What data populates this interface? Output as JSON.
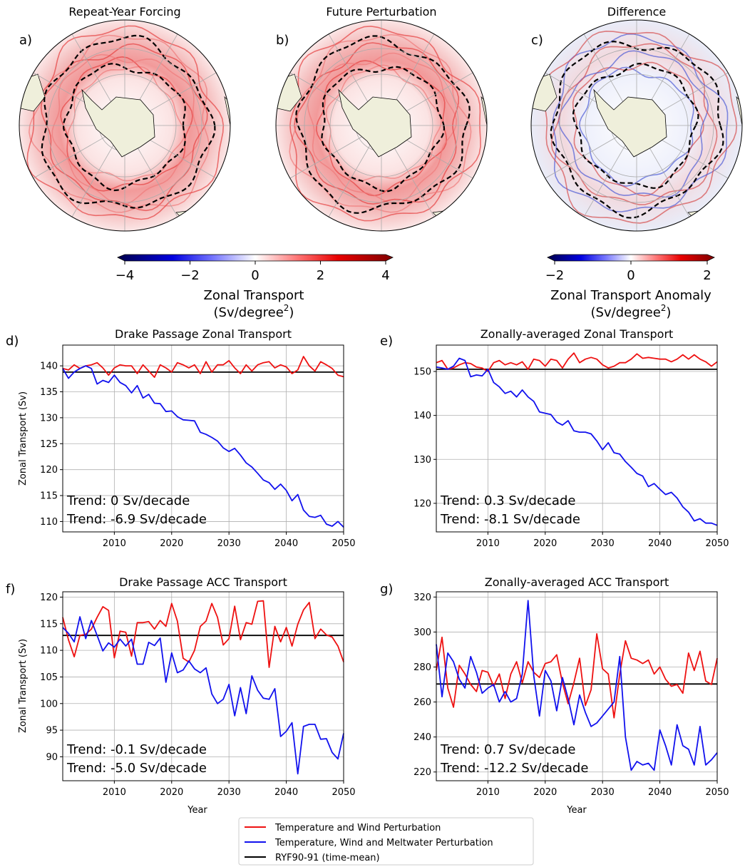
{
  "maps": [
    {
      "letter": "a)",
      "title": "Repeat-Year Forcing"
    },
    {
      "letter": "b)",
      "title": "Future Perturbation"
    },
    {
      "letter": "c)",
      "title": "Difference"
    }
  ],
  "colorbars": [
    {
      "ticks": [
        "−4",
        "−2",
        "0",
        "2",
        "4"
      ],
      "label1": "Zonal Transport",
      "label2a": "(Sv/degree",
      "label2sup": "2",
      "label2b": ")"
    },
    {
      "ticks": [
        "−2",
        "0",
        "2"
      ],
      "label1": "Zonal Transport Anomaly",
      "label2a": "(Sv/degree",
      "label2sup": "2",
      "label2b": ")"
    }
  ],
  "colors": {
    "red": "#ee1111",
    "blue": "#1111ee",
    "black": "#000000"
  },
  "legend": {
    "red": "Temperature and Wind Perturbation",
    "blue": "Temperature, Wind and Meltwater Perturbation",
    "black": "RYF90-91 (time-mean)"
  },
  "chart_data": [
    {
      "type": "line",
      "letter": "d)",
      "title": "Drake Passage Zonal Transport",
      "ylabel": "Zonal Transport (Sv)",
      "xlabel": "",
      "xlim": [
        2001,
        2050
      ],
      "ylim": [
        108,
        144
      ],
      "xticks": [
        2010,
        2020,
        2030,
        2040,
        2050
      ],
      "yticks": [
        110,
        115,
        120,
        125,
        130,
        135,
        140
      ],
      "x": [
        2001,
        2002,
        2003,
        2004,
        2005,
        2006,
        2007,
        2008,
        2009,
        2010,
        2011,
        2012,
        2013,
        2014,
        2015,
        2016,
        2017,
        2018,
        2019,
        2020,
        2021,
        2022,
        2023,
        2024,
        2025,
        2026,
        2027,
        2028,
        2029,
        2030,
        2031,
        2032,
        2033,
        2034,
        2035,
        2036,
        2037,
        2038,
        2039,
        2040,
        2041,
        2042,
        2043,
        2044,
        2045,
        2046,
        2047,
        2048,
        2049,
        2050
      ],
      "series": [
        {
          "name": "Temperature and Wind Perturbation",
          "color": "red",
          "values": [
            139.5,
            139.2,
            140.2,
            139.5,
            140,
            140.2,
            140.6,
            139.6,
            138.2,
            139.6,
            140.2,
            140,
            140,
            138.5,
            140.2,
            139,
            137.8,
            140.2,
            139.6,
            138.8,
            140.6,
            140.2,
            139.6,
            140.2,
            138.5,
            140.8,
            138.8,
            140.2,
            140.2,
            141,
            139.6,
            138.5,
            140.2,
            139,
            140.2,
            140.6,
            140.8,
            139.6,
            140.2,
            139.8,
            138.5,
            139.2,
            141.8,
            140,
            139,
            140.8,
            140.2,
            139.5,
            138.2,
            137.9
          ]
        },
        {
          "name": "Temperature, Wind and Meltwater Perturbation",
          "color": "blue",
          "values": [
            139.5,
            137.6,
            138.8,
            139.5,
            140,
            139.5,
            136.5,
            137.2,
            136.8,
            138.2,
            136.8,
            136.2,
            134.8,
            136.2,
            133.8,
            134.5,
            132.8,
            132.7,
            131.2,
            131.3,
            130.2,
            129.6,
            129.5,
            129.4,
            127.2,
            126.8,
            126.2,
            125.5,
            124.2,
            123.5,
            124.1,
            122.8,
            121.3,
            120.5,
            119.3,
            118,
            117.5,
            116.2,
            117.2,
            116,
            114,
            115.2,
            112.2,
            111,
            110.8,
            111.2,
            109.5,
            109.1,
            110,
            108.9
          ]
        }
      ],
      "hline": 138.8,
      "trends": [
        {
          "text": "Trend: 0 Sv/decade",
          "color": "red"
        },
        {
          "text": "Trend: -6.9 Sv/decade",
          "color": "blue"
        }
      ]
    },
    {
      "type": "line",
      "letter": "e)",
      "title": "Zonally-averaged Zonal Transport",
      "ylabel": "",
      "xlabel": "",
      "xlim": [
        2001,
        2050
      ],
      "ylim": [
        113.5,
        156
      ],
      "xticks": [
        2010,
        2020,
        2030,
        2040,
        2050
      ],
      "yticks": [
        120,
        130,
        140,
        150
      ],
      "x": [
        2001,
        2002,
        2003,
        2004,
        2005,
        2006,
        2007,
        2008,
        2009,
        2010,
        2011,
        2012,
        2013,
        2014,
        2015,
        2016,
        2017,
        2018,
        2019,
        2020,
        2021,
        2022,
        2023,
        2024,
        2025,
        2026,
        2027,
        2028,
        2029,
        2030,
        2031,
        2032,
        2033,
        2034,
        2035,
        2036,
        2037,
        2038,
        2039,
        2040,
        2041,
        2042,
        2043,
        2044,
        2045,
        2046,
        2047,
        2048,
        2049,
        2050
      ],
      "series": [
        {
          "name": "Temperature and Wind Perturbation",
          "color": "red",
          "values": [
            152,
            152.5,
            150.5,
            150.8,
            151.5,
            152,
            151.8,
            151,
            150.8,
            150,
            152,
            152.5,
            151.5,
            152,
            151.5,
            152.2,
            150.5,
            152.8,
            152.5,
            151.2,
            152.8,
            152.5,
            150.8,
            152.8,
            154.2,
            152,
            152.8,
            153.2,
            152.8,
            151.5,
            150.8,
            151.2,
            152,
            152,
            152.8,
            154,
            153,
            153.2,
            153,
            152.8,
            152.8,
            152.2,
            152.8,
            153.8,
            152.8,
            153.8,
            152.8,
            152.2,
            151.2,
            152.2
          ]
        },
        {
          "name": "Temperature, Wind and Meltwater Perturbation",
          "color": "blue",
          "values": [
            151,
            150.8,
            150.5,
            151.2,
            153,
            152.5,
            148.8,
            149.2,
            149,
            150.5,
            147.5,
            146.5,
            145,
            145.5,
            144.2,
            145.8,
            144.2,
            143.2,
            140.8,
            140.5,
            140.2,
            138.5,
            137.8,
            138.8,
            136.5,
            136.2,
            136.2,
            135.8,
            134.2,
            132.2,
            133.8,
            131.5,
            131.2,
            129.5,
            128.2,
            126.8,
            126.2,
            123.8,
            124.5,
            123.2,
            122,
            122.5,
            121.2,
            119.2,
            118,
            116,
            116.5,
            115.5,
            115.5,
            115
          ]
        }
      ],
      "hline": 150.5,
      "trends": [
        {
          "text": "Trend: 0.3 Sv/decade",
          "color": "red"
        },
        {
          "text": "Trend: -8.1 Sv/decade",
          "color": "blue"
        }
      ]
    },
    {
      "type": "line",
      "letter": "f)",
      "title": "Drake Passage ACC Transport",
      "ylabel": "Zonal Transport (Sv)",
      "xlabel": "Year",
      "xlim": [
        2001,
        2050
      ],
      "ylim": [
        85.5,
        121
      ],
      "xticks": [
        2010,
        2020,
        2030,
        2040,
        2050
      ],
      "yticks": [
        90,
        95,
        100,
        105,
        110,
        115,
        120
      ],
      "x": [
        2001,
        2002,
        2003,
        2004,
        2005,
        2006,
        2007,
        2008,
        2009,
        2010,
        2011,
        2012,
        2013,
        2014,
        2015,
        2016,
        2017,
        2018,
        2019,
        2020,
        2021,
        2022,
        2023,
        2024,
        2025,
        2026,
        2027,
        2028,
        2029,
        2030,
        2031,
        2032,
        2033,
        2034,
        2035,
        2036,
        2037,
        2038,
        2039,
        2040,
        2041,
        2042,
        2043,
        2044,
        2045,
        2046,
        2047,
        2048,
        2049,
        2050
      ],
      "series": [
        {
          "name": "Temperature and Wind Perturbation",
          "color": "red",
          "values": [
            116.2,
            112,
            108.8,
            112.8,
            113,
            114,
            116.2,
            118.2,
            117.5,
            108.6,
            113.6,
            113.4,
            108.9,
            115.2,
            115.2,
            115.4,
            114,
            115.6,
            114.5,
            118.8,
            115.5,
            108.5,
            107.8,
            110,
            114.5,
            115.5,
            118.8,
            116.2,
            111,
            112.2,
            118.3,
            112,
            115.2,
            114.9,
            119.2,
            119.3,
            106.8,
            114.5,
            111.6,
            114.3,
            110.8,
            114.9,
            117.6,
            119,
            112.2,
            114,
            112.9,
            112.5,
            110.8,
            107.8
          ]
        },
        {
          "name": "Temperature, Wind and Meltwater Perturbation",
          "color": "blue",
          "values": [
            114.3,
            113.2,
            111.6,
            116.3,
            112.2,
            115.6,
            112.8,
            109.9,
            111.4,
            110.6,
            112.1,
            110.8,
            112.1,
            107.4,
            107.4,
            111.5,
            110.9,
            112.3,
            104,
            109.5,
            105.8,
            106.3,
            108,
            106.5,
            105.8,
            106.7,
            101.8,
            100,
            100.8,
            103.6,
            97.7,
            103,
            98.1,
            105.2,
            102.5,
            101,
            100.8,
            102.8,
            93.8,
            94.8,
            96.4,
            86.8,
            95.7,
            96.1,
            96.1,
            93.3,
            93.4,
            90.8,
            89.6,
            94.4
          ]
        }
      ],
      "hline": 112.8,
      "trends": [
        {
          "text": "Trend: -0.1 Sv/decade",
          "color": "red"
        },
        {
          "text": "Trend: -5.0 Sv/decade",
          "color": "blue"
        }
      ]
    },
    {
      "type": "line",
      "letter": "g)",
      "title": "Zonally-averaged ACC Transport",
      "ylabel": "",
      "xlabel": "Year",
      "xlim": [
        2001,
        2050
      ],
      "ylim": [
        215,
        323
      ],
      "xticks": [
        2010,
        2020,
        2030,
        2040,
        2050
      ],
      "yticks": [
        220,
        240,
        260,
        280,
        300,
        320
      ],
      "x": [
        2001,
        2002,
        2003,
        2004,
        2005,
        2006,
        2007,
        2008,
        2009,
        2010,
        2011,
        2012,
        2013,
        2014,
        2015,
        2016,
        2017,
        2018,
        2019,
        2020,
        2021,
        2022,
        2023,
        2024,
        2025,
        2026,
        2027,
        2028,
        2029,
        2030,
        2031,
        2032,
        2033,
        2034,
        2035,
        2036,
        2037,
        2038,
        2039,
        2040,
        2041,
        2042,
        2043,
        2044,
        2045,
        2046,
        2047,
        2048,
        2049,
        2050
      ],
      "series": [
        {
          "name": "Temperature and Wind Perturbation",
          "color": "red",
          "values": [
            278,
            297,
            268,
            257,
            281,
            276,
            270,
            266,
            278,
            277,
            269,
            276,
            262,
            276,
            283,
            271,
            283,
            277,
            274,
            282,
            283,
            287,
            271,
            259,
            271,
            285,
            258,
            267,
            299,
            279,
            276,
            251,
            276,
            295,
            285,
            284,
            282,
            284,
            276,
            280,
            273,
            269,
            270,
            265,
            288,
            278,
            289,
            272,
            270,
            285
          ]
        },
        {
          "name": "Temperature, Wind and Meltwater Perturbation",
          "color": "blue",
          "values": [
            293,
            263,
            288,
            283,
            273,
            268,
            286,
            277,
            265,
            268,
            270,
            260,
            266,
            260,
            262,
            276,
            318,
            275,
            252,
            278,
            272,
            255,
            274,
            262,
            247,
            264,
            254,
            246,
            248,
            252,
            256,
            260,
            286,
            240,
            221,
            226,
            224,
            225,
            221,
            244,
            235,
            224,
            247,
            235,
            233,
            224,
            246,
            224,
            227,
            231
          ]
        }
      ],
      "hline": 270.3,
      "trends": [
        {
          "text": "Trend: 0.7 Sv/decade",
          "color": "red"
        },
        {
          "text": "Trend: -12.2 Sv/decade",
          "color": "blue"
        }
      ]
    }
  ]
}
